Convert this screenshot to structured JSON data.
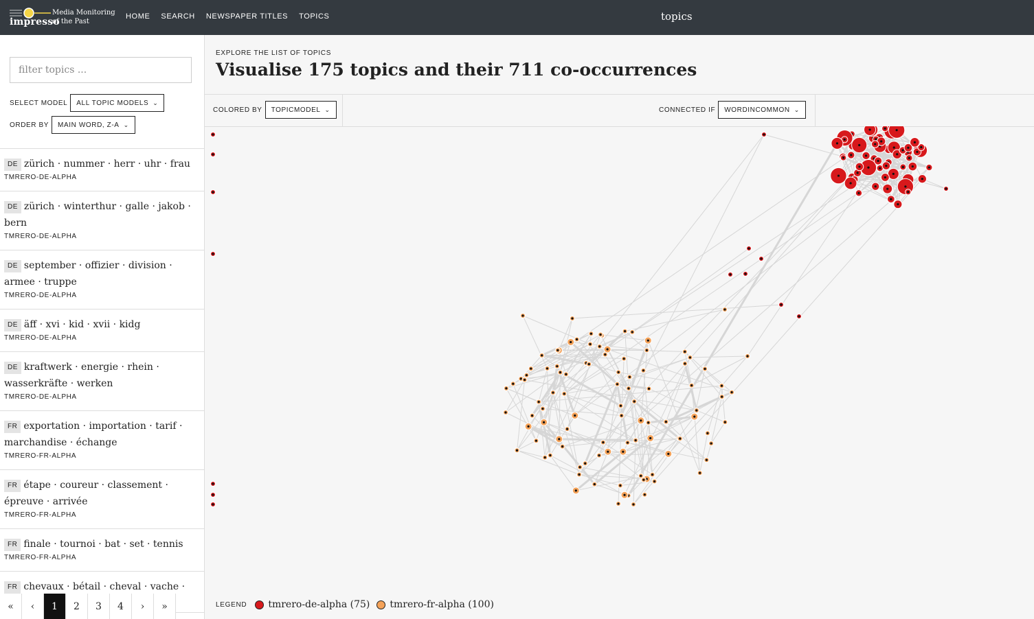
{
  "header": {
    "logo_word": "impresso",
    "logo_sub_1": "Media Monitoring",
    "logo_sub_2": "of the Past",
    "nav": [
      "HOME",
      "SEARCH",
      "NEWSPAPER TITLES",
      "TOPICS"
    ],
    "page_heading": "topics"
  },
  "sidebar": {
    "filter_placeholder": "filter topics ...",
    "select_model_label": "SELECT MODEL",
    "select_model_value": "ALL TOPIC MODELS",
    "order_by_label": "ORDER BY",
    "order_by_value": "MAIN WORD, Z-A",
    "topics": [
      {
        "lang": "DE",
        "words": "zürich · nummer · herr · uhr · frau",
        "model": "TMRERO-DE-ALPHA"
      },
      {
        "lang": "DE",
        "words": "zürich · winterthur · galle · jakob · bern",
        "model": "TMRERO-DE-ALPHA"
      },
      {
        "lang": "DE",
        "words": "september · offizier · division · armee · truppe",
        "model": "TMRERO-DE-ALPHA"
      },
      {
        "lang": "DE",
        "words": "äff · xvi · kid · xvii · kidg",
        "model": "TMRERO-DE-ALPHA"
      },
      {
        "lang": "DE",
        "words": "kraftwerk · energie · rhein · wasserkräfte · werken",
        "model": "TMRERO-DE-ALPHA"
      },
      {
        "lang": "FR",
        "words": "exportation · importation · tarif · marchandise · échange",
        "model": "TMRERO-FR-ALPHA"
      },
      {
        "lang": "FR",
        "words": "étape · coureur · classement · épreuve · arrivée",
        "model": "TMRERO-FR-ALPHA"
      },
      {
        "lang": "FR",
        "words": "finale · tournoi · bat · set · tennis",
        "model": "TMRERO-FR-ALPHA"
      },
      {
        "lang": "FR",
        "words": "chevaux · bétail · cheval · vache · char",
        "model": ""
      }
    ],
    "pagination": [
      "«",
      "‹",
      "1",
      "2",
      "3",
      "4",
      "›",
      "»"
    ],
    "current_page": "1"
  },
  "main": {
    "explore_label": "EXPLORE THE LIST OF TOPICS",
    "title_pre": "Visualise ",
    "topic_count": "175",
    "title_mid": " topics and their ",
    "cooc_count": "711",
    "title_post": " co-occurrences",
    "colored_by_label": "COLORED BY",
    "colored_by_value": "TOPICMODEL",
    "connected_if_label": "CONNECTED IF",
    "connected_if_value": "WORDINCOMMON",
    "legend_label": "LEGEND",
    "legend": [
      {
        "name": "tmrero-de-alpha (75)",
        "color": "#d7191c"
      },
      {
        "name": "tmrero-fr-alpha (100)",
        "color": "#f4a259"
      }
    ]
  },
  "colors": {
    "header_bg": "#343a40",
    "de_node": "#d7191c",
    "fr_node": "#f4a259",
    "edge": "#d6d6d6"
  }
}
